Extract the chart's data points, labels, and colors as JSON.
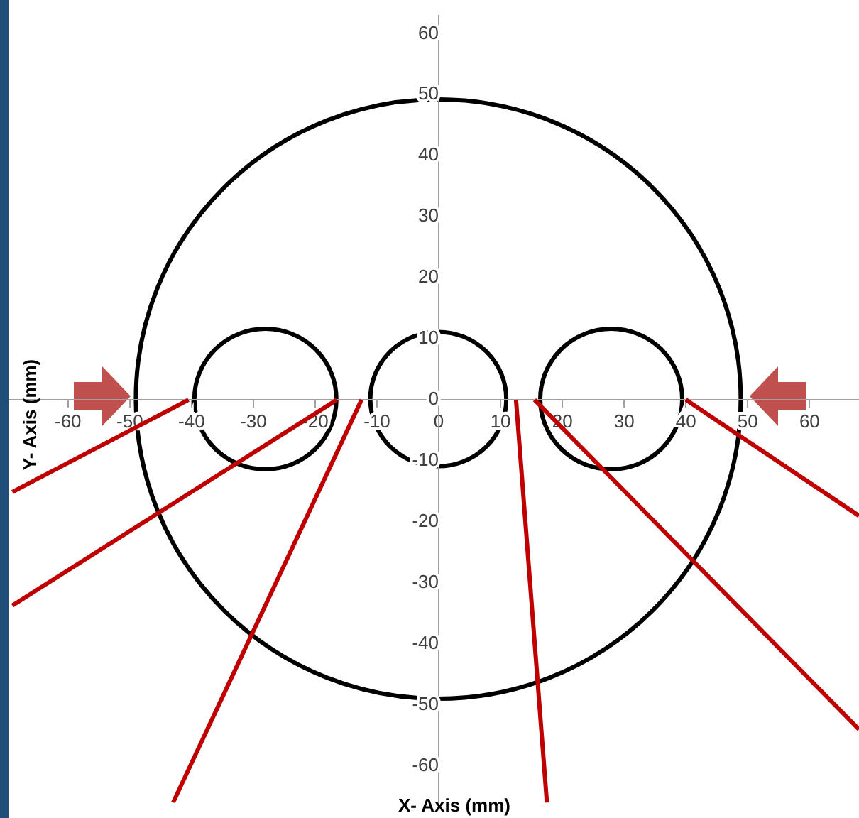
{
  "chart_data": {
    "type": "line",
    "xlabel": "X- Axis (mm)",
    "ylabel": "Y- Axis (mm)",
    "marker": "none",
    "xlim": [
      -71,
      68
    ],
    "ylim": [
      -66,
      63
    ],
    "xticks": [
      -60,
      -50,
      -40,
      -30,
      -20,
      -10,
      0,
      10,
      20,
      30,
      40,
      50,
      60
    ],
    "yticks": [
      -60,
      -50,
      -40,
      -30,
      -20,
      -10,
      0,
      10,
      20,
      30,
      40,
      50,
      60
    ],
    "series": [
      {
        "color": "#c00000",
        "x": [
          -69,
          -40.5
        ],
        "values": [
          -15.1,
          0
        ]
      },
      {
        "color": "#c00000",
        "x": [
          -69,
          -16.5
        ],
        "values": [
          -33.7,
          0
        ]
      },
      {
        "color": "#c00000",
        "x": [
          -43,
          -12.5
        ],
        "values": [
          -66,
          0
        ]
      },
      {
        "color": "#c00000",
        "x": [
          12.5,
          17.5
        ],
        "values": [
          0,
          -66
        ]
      },
      {
        "color": "#c00000",
        "x": [
          15.5,
          68
        ],
        "values": [
          0,
          -54
        ]
      },
      {
        "color": "#c00000",
        "x": [
          40,
          68
        ],
        "values": [
          0,
          -19
        ]
      }
    ]
  }
}
